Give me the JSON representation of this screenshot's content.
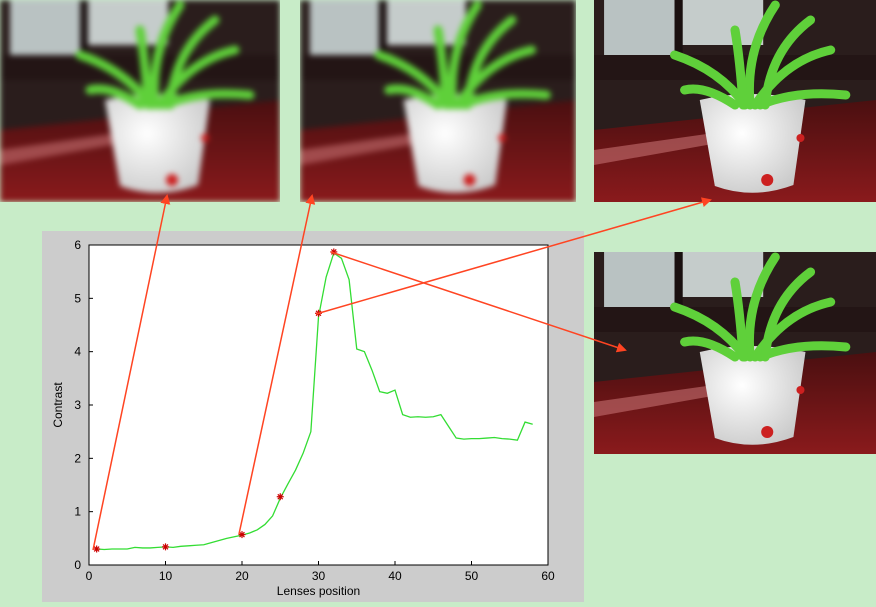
{
  "chart_data": {
    "type": "line",
    "xlabel": "Lenses position",
    "ylabel": "Contrast",
    "xlim": [
      0,
      60
    ],
    "ylim": [
      0,
      6
    ],
    "xticks": [
      0,
      10,
      20,
      30,
      40,
      50,
      60
    ],
    "yticks": [
      0,
      1,
      2,
      3,
      4,
      5,
      6
    ],
    "grid": false,
    "series": [
      {
        "color": "#33dd33",
        "x": [
          1,
          2,
          3,
          4,
          5,
          6,
          7,
          8,
          9,
          10,
          11,
          12,
          13,
          14,
          15,
          16,
          17,
          18,
          19,
          20,
          21,
          22,
          23,
          24,
          25,
          26,
          27,
          28,
          29,
          30,
          31,
          32,
          33,
          34,
          35,
          36,
          37,
          38,
          39,
          40,
          41,
          42,
          43,
          44,
          45,
          46,
          47,
          48,
          49,
          50,
          51,
          52,
          53,
          54,
          55,
          56,
          57,
          58
        ],
        "y": [
          0.3,
          0.29,
          0.3,
          0.3,
          0.3,
          0.33,
          0.32,
          0.32,
          0.33,
          0.34,
          0.33,
          0.35,
          0.36,
          0.37,
          0.38,
          0.42,
          0.46,
          0.5,
          0.53,
          0.56,
          0.6,
          0.66,
          0.76,
          0.92,
          1.25,
          1.52,
          1.78,
          2.1,
          2.5,
          4.65,
          5.4,
          5.85,
          5.75,
          5.35,
          4.05,
          4.0,
          3.65,
          3.25,
          3.22,
          3.28,
          2.82,
          2.77,
          2.78,
          2.77,
          2.78,
          2.82,
          2.6,
          2.38,
          2.36,
          2.37,
          2.37,
          2.38,
          2.39,
          2.37,
          2.36,
          2.34,
          2.68,
          2.64
        ]
      }
    ],
    "markers": [
      {
        "x": 1,
        "y": 0.3
      },
      {
        "x": 10,
        "y": 0.34
      },
      {
        "x": 20,
        "y": 0.57
      },
      {
        "x": 25,
        "y": 1.28
      },
      {
        "x": 30,
        "y": 4.72
      },
      {
        "x": 32,
        "y": 5.87
      }
    ]
  },
  "colors": {
    "background": "#c8ecc8",
    "figure_bg": "#cccccc",
    "line": "#33dd33",
    "marker": "#cc0000",
    "arrow": "#ff4422"
  },
  "photos": [
    {
      "name": "photo-blurry-1",
      "focus": "blurred"
    },
    {
      "name": "photo-blurry-2",
      "focus": "blurred"
    },
    {
      "name": "photo-sharp-1",
      "focus": "sharp"
    },
    {
      "name": "photo-sharp-2",
      "focus": "sharp"
    }
  ]
}
